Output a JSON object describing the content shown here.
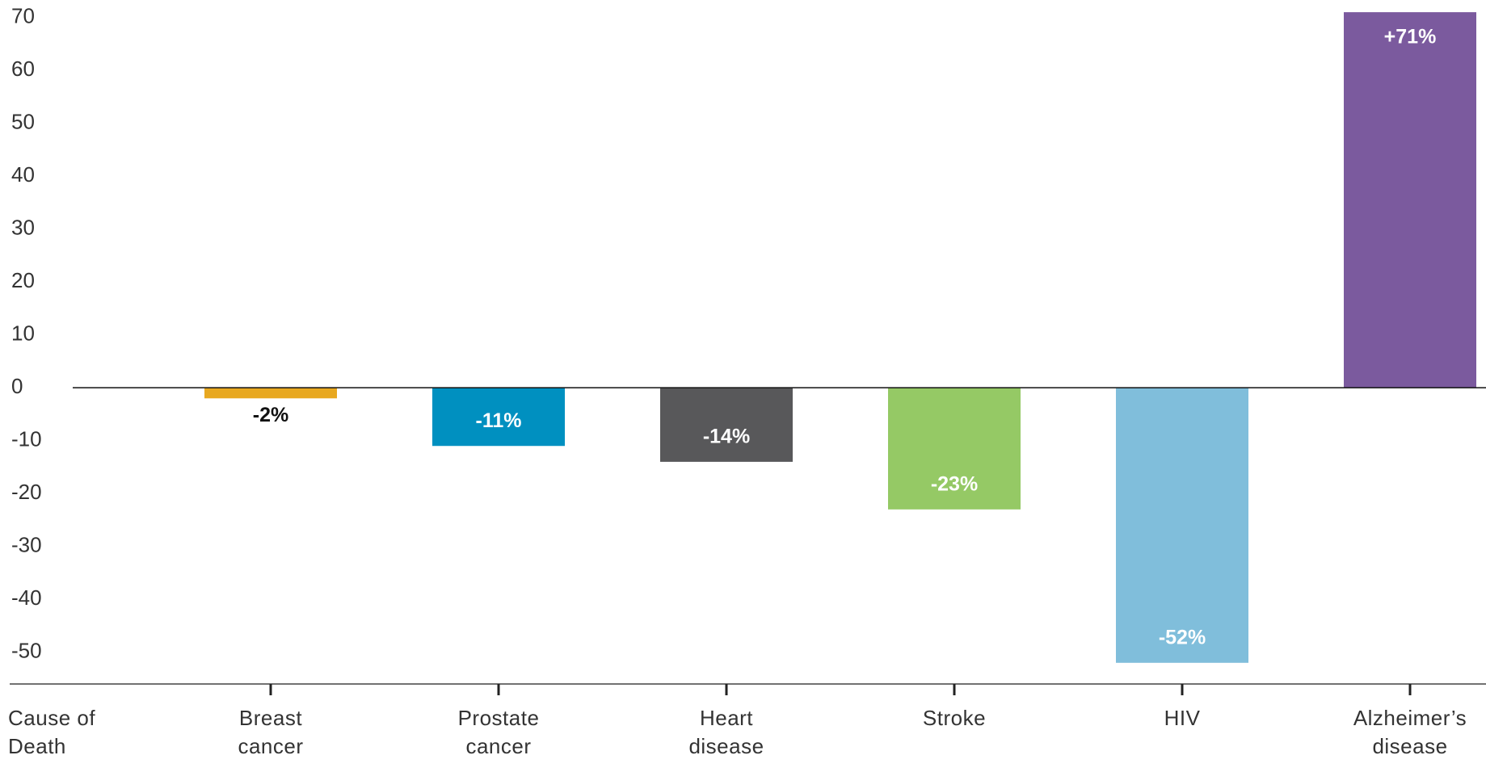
{
  "chart_data": {
    "type": "bar",
    "x_label": "Cause of Death",
    "categories": [
      "Breast cancer",
      "Prostate cancer",
      "Heart disease",
      "Stroke",
      "HIV",
      "Alzheimer’s disease"
    ],
    "values": [
      -2,
      -11,
      -14,
      -23,
      -52,
      71
    ],
    "value_labels": [
      "-2%",
      "-11%",
      "-14%",
      "-23%",
      "-52%",
      "+71%"
    ],
    "colors": [
      "#e8a820",
      "#0090c0",
      "#58585a",
      "#95c965",
      "#80bedb",
      "#7b5a9e"
    ],
    "ylim": [
      -56,
      73
    ],
    "yticks": [
      -50,
      -40,
      -30,
      -20,
      -10,
      0,
      10,
      20,
      30,
      40,
      50,
      60,
      70
    ],
    "grid": false
  }
}
